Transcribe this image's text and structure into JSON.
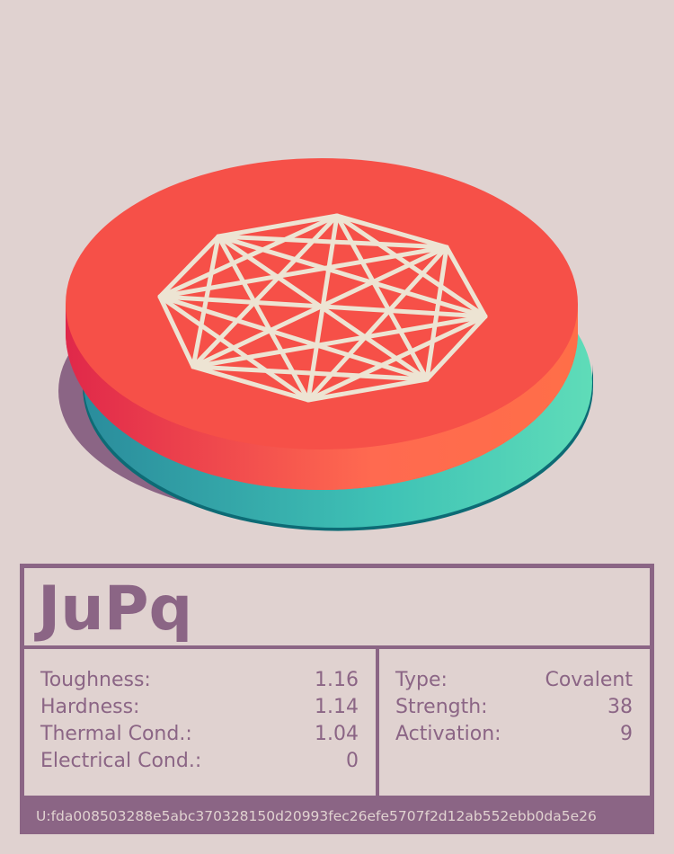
{
  "title": "JuPq",
  "left_stats": [
    {
      "label": "Toughness:",
      "value": 1.16
    },
    {
      "label": "Hardness:",
      "value": 1.14
    },
    {
      "label": "Thermal Cond.:",
      "value": 1.04
    },
    {
      "label": "Electrical Cond.:",
      "value": 0
    }
  ],
  "right_stats": [
    {
      "label": "Type:",
      "value": "Covalent"
    },
    {
      "label": "Strength:",
      "value": 38
    },
    {
      "label": "Activation:",
      "value": 9
    }
  ],
  "footer": "U:fda008503288e5abc370328150d20993fec26efe5707f2d12ab552ebb0da5e26"
}
